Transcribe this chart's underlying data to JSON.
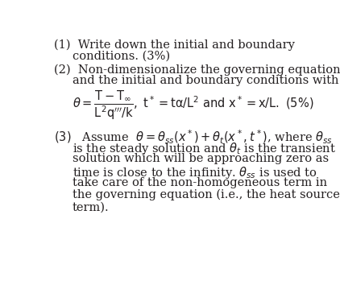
{
  "background_color": "#ffffff",
  "text_color": "#231f20",
  "fig_width": 4.22,
  "fig_height": 3.54,
  "dpi": 100,
  "font_family": "DejaVu Serif",
  "fontsize": 10.5,
  "line1_1": "(1)  Write down the initial and boundary",
  "line1_2": "conditions. (3%)",
  "line2_1": "(2)  Non-dimensionalize the governing equation",
  "line2_2": "and the initial and boundary conditions with",
  "line3_1": "(3)   Assume",
  "line3_2": "is the steady solution and",
  "line3_3": "solution which will be approaching zero as",
  "line3_4": "time is close to the infinity.",
  "line3_5": "take care of the non-homogeneous term in",
  "line3_6": "the governing equation (i.e., the heat source",
  "line3_7": "term)."
}
